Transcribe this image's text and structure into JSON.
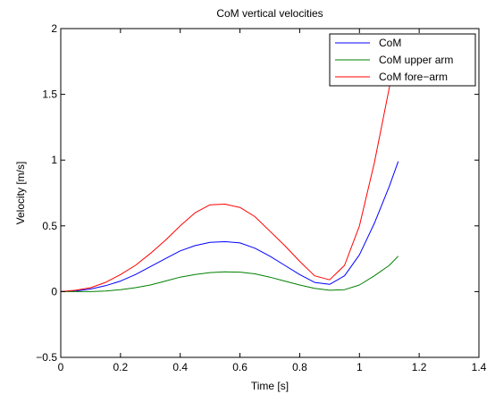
{
  "chart_data": {
    "type": "line",
    "title": "CoM vertical velocities",
    "xlabel": "Time [s]",
    "ylabel": "Velocity [m/s]",
    "xlim": [
      0,
      1.4
    ],
    "ylim": [
      -0.5,
      2
    ],
    "xticks": [
      0,
      0.2,
      0.4,
      0.6,
      0.8,
      1,
      1.2,
      1.4
    ],
    "xtick_labels": [
      "0",
      "0.2",
      "0.4",
      "0.6",
      "0.8",
      "1",
      "1.2",
      "1.4"
    ],
    "yticks": [
      -0.5,
      0,
      0.5,
      1,
      1.5,
      2
    ],
    "ytick_labels": [
      "−0.5",
      "0",
      "0.5",
      "1",
      "1.5",
      "2"
    ],
    "grid": false,
    "legend_position": "top-right",
    "series": [
      {
        "name": "CoM",
        "color": "#0000ff",
        "x": [
          0,
          0.05,
          0.1,
          0.15,
          0.2,
          0.25,
          0.3,
          0.35,
          0.4,
          0.45,
          0.5,
          0.55,
          0.6,
          0.65,
          0.7,
          0.75,
          0.8,
          0.85,
          0.9,
          0.95,
          1.0,
          1.05,
          1.1,
          1.13
        ],
        "y": [
          0,
          0.005,
          0.02,
          0.045,
          0.08,
          0.13,
          0.19,
          0.25,
          0.31,
          0.35,
          0.375,
          0.38,
          0.37,
          0.33,
          0.27,
          0.2,
          0.13,
          0.07,
          0.055,
          0.12,
          0.28,
          0.52,
          0.8,
          0.99
        ]
      },
      {
        "name": "CoM upper arm",
        "color": "#008000",
        "x": [
          0,
          0.05,
          0.1,
          0.15,
          0.2,
          0.25,
          0.3,
          0.35,
          0.4,
          0.45,
          0.5,
          0.55,
          0.6,
          0.65,
          0.7,
          0.75,
          0.8,
          0.85,
          0.9,
          0.95,
          1.0,
          1.05,
          1.1,
          1.13
        ],
        "y": [
          0,
          0.0,
          0.0,
          0.005,
          0.015,
          0.03,
          0.05,
          0.08,
          0.11,
          0.13,
          0.145,
          0.15,
          0.148,
          0.135,
          0.11,
          0.08,
          0.05,
          0.025,
          0.01,
          0.015,
          0.05,
          0.12,
          0.2,
          0.27
        ]
      },
      {
        "name": "CoM fore−arm",
        "color": "#ff0000",
        "x": [
          0,
          0.05,
          0.1,
          0.15,
          0.2,
          0.25,
          0.3,
          0.35,
          0.4,
          0.45,
          0.5,
          0.55,
          0.6,
          0.65,
          0.7,
          0.75,
          0.8,
          0.85,
          0.9,
          0.95,
          1.0,
          1.05,
          1.1,
          1.13
        ],
        "y": [
          0,
          0.01,
          0.03,
          0.07,
          0.13,
          0.2,
          0.29,
          0.39,
          0.5,
          0.6,
          0.66,
          0.665,
          0.64,
          0.57,
          0.46,
          0.35,
          0.23,
          0.12,
          0.09,
          0.2,
          0.5,
          0.98,
          1.55,
          1.95
        ]
      }
    ]
  }
}
